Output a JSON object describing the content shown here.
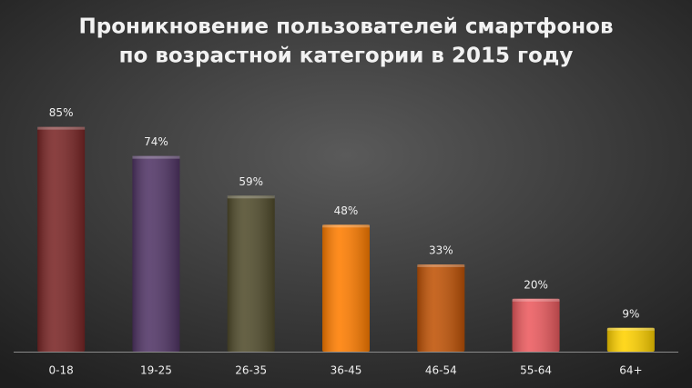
{
  "chart_data": {
    "type": "bar",
    "title": [
      "Проникновение пользователей смартфонов",
      "по возрастной категории в 2015 году"
    ],
    "categories": [
      "0-18",
      "19-25",
      "26-35",
      "36-45",
      "46-54",
      "55-64",
      "64+"
    ],
    "values": [
      85,
      74,
      59,
      48,
      33,
      20,
      9
    ],
    "value_labels": [
      "85%",
      "74%",
      "59%",
      "48%",
      "33%",
      "20%",
      "9%"
    ],
    "colors": [
      "#7a2626",
      "#513566",
      "#514c2c",
      "#ff7d00",
      "#c05306",
      "#ec5b5f",
      "#ffd200"
    ]
  }
}
